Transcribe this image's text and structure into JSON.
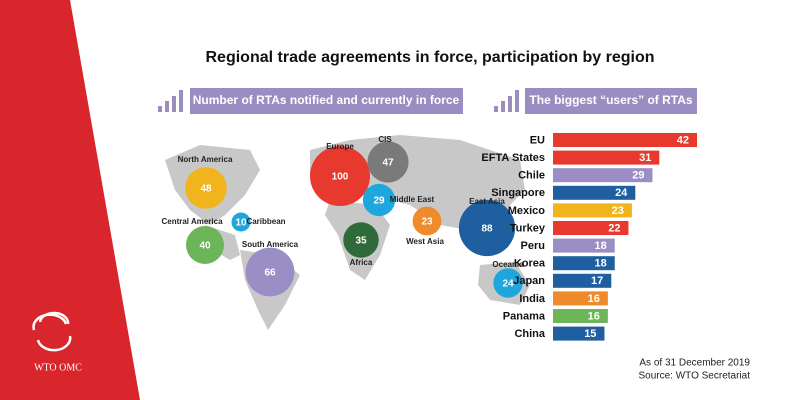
{
  "title": "Regional trade agreements in force, participation by region",
  "logo": "WTO OMC",
  "notes": [
    "As of 31 December 2019",
    "Source: WTO Secretariat"
  ],
  "chart_data": [
    {
      "type": "bubble-map",
      "title": "Number of RTAs notified and currently in force",
      "categories": [
        "North America",
        "Central America",
        "Caribbean",
        "South America",
        "Europe",
        "CIS",
        "Middle East",
        "West Asia",
        "Africa",
        "East Asia",
        "Oceania"
      ],
      "values": [
        48,
        40,
        10,
        66,
        100,
        47,
        29,
        23,
        35,
        88,
        24
      ],
      "colors": [
        "#f2b41c",
        "#6db559",
        "#1ea7dd",
        "#9b8ec4",
        "#e8392f",
        "#7a7a7a",
        "#1ea7dd",
        "#f08a2a",
        "#2f6b3a",
        "#1f5fa0",
        "#1ea7dd"
      ]
    },
    {
      "type": "bar",
      "title": "The biggest “users” of RTAs",
      "categories": [
        "EU",
        "EFTA States",
        "Chile",
        "Singapore",
        "Mexico",
        "Turkey",
        "Peru",
        "Korea",
        "Japan",
        "India",
        "Panama",
        "China"
      ],
      "values": [
        42,
        31,
        29,
        24,
        23,
        22,
        18,
        18,
        17,
        16,
        16,
        15
      ],
      "colors": [
        "#e8392f",
        "#e8392f",
        "#9b8ec4",
        "#1f5fa0",
        "#f2b41c",
        "#e8392f",
        "#9b8ec4",
        "#1f5fa0",
        "#1f5fa0",
        "#f08a2a",
        "#6db559",
        "#1f5fa0"
      ]
    }
  ]
}
